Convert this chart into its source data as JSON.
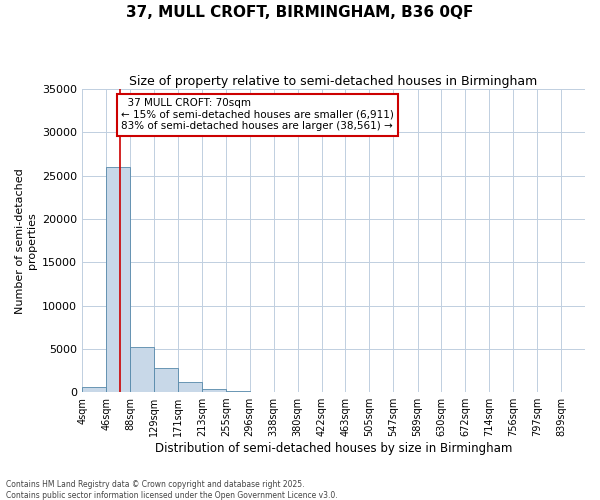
{
  "title": "37, MULL CROFT, BIRMINGHAM, B36 0QF",
  "subtitle": "Size of property relative to semi-detached houses in Birmingham",
  "xlabel": "Distribution of semi-detached houses by size in Birmingham",
  "ylabel": "Number of semi-detached\nproperties",
  "bin_labels": [
    "4sqm",
    "46sqm",
    "88sqm",
    "129sqm",
    "171sqm",
    "213sqm",
    "255sqm",
    "296sqm",
    "338sqm",
    "380sqm",
    "422sqm",
    "463sqm",
    "505sqm",
    "547sqm",
    "589sqm",
    "630sqm",
    "672sqm",
    "714sqm",
    "756sqm",
    "797sqm",
    "839sqm"
  ],
  "bin_edges": [
    4,
    46,
    88,
    129,
    171,
    213,
    255,
    296,
    338,
    380,
    422,
    463,
    505,
    547,
    589,
    630,
    672,
    714,
    756,
    797,
    839
  ],
  "bar_values": [
    600,
    26000,
    5200,
    2800,
    1200,
    400,
    150,
    50,
    20,
    10,
    5,
    2,
    1,
    1,
    0,
    0,
    0,
    0,
    0,
    0
  ],
  "bar_color": "#c8d8e8",
  "bar_edge_color": "#5588aa",
  "property_size": 70,
  "property_label": "37 MULL CROFT: 70sqm",
  "pct_smaller": 15,
  "pct_larger": 83,
  "count_smaller": 6911,
  "count_larger": 38561,
  "vline_color": "#cc0000",
  "annotation_box_color": "#cc0000",
  "ylim": [
    0,
    35000
  ],
  "yticks": [
    0,
    5000,
    10000,
    15000,
    20000,
    25000,
    30000,
    35000
  ],
  "background_color": "#ffffff",
  "grid_color": "#c0cfe0",
  "footnote": "Contains HM Land Registry data © Crown copyright and database right 2025.\nContains public sector information licensed under the Open Government Licence v3.0."
}
